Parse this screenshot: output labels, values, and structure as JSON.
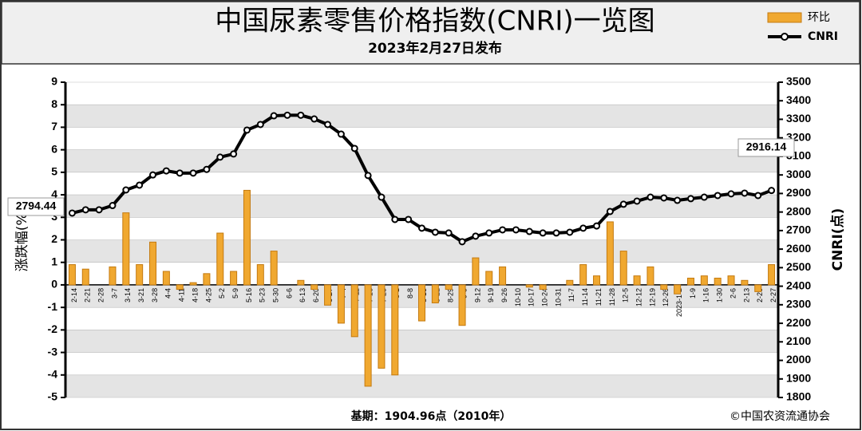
{
  "chart_data": {
    "type": "bar-line",
    "title": "中国尿素零售价格指数(CNRI)一览图",
    "subtitle": "2023年2月27日发布",
    "y_label": "涨跌幅(%)",
    "y2_label": "CNRI(点)",
    "footer_left": "基期：1904.96点（2010年）",
    "footer_right": "©中国农资流通协会",
    "categories": [
      "2-14",
      "2-21",
      "2-28",
      "3-7",
      "3-14",
      "3-21",
      "3-28",
      "4-4",
      "4-11",
      "4-18",
      "4-25",
      "5-2",
      "5-9",
      "5-16",
      "5-23",
      "5-30",
      "6-6",
      "6-13",
      "6-20",
      "6-27",
      "7-4",
      "7-11",
      "7-18",
      "7-25",
      "8-1",
      "8-8",
      "8-15",
      "8-22",
      "8-29",
      "9-5",
      "9-12",
      "9-19",
      "9-26",
      "10-10",
      "10-17",
      "10-24",
      "10-31",
      "11-7",
      "11-14",
      "11-21",
      "11-28",
      "12-5",
      "12-12",
      "12-19",
      "12-26",
      "2023-1-2",
      "1-9",
      "1-16",
      "1-30",
      "2-6",
      "2-13",
      "2-20",
      "2-27"
    ],
    "series": [
      {
        "name": "环比",
        "type": "bar",
        "color": "#f0a830",
        "values": [
          0.9,
          0.7,
          0,
          0.8,
          3.2,
          0.9,
          1.9,
          0.6,
          -0.2,
          0.1,
          0.5,
          2.3,
          0.6,
          4.2,
          0.9,
          1.5,
          0,
          0.2,
          -0.2,
          -0.9,
          -1.7,
          -2.3,
          -4.5,
          -3.7,
          -4.0,
          0,
          -1.6,
          -0.8,
          -0.2,
          -1.8,
          1.2,
          0.6,
          0.8,
          0,
          -0.1,
          -0.2,
          0,
          0.2,
          0.9,
          0.4,
          2.8,
          1.5,
          0.4,
          0.8,
          -0.2,
          -0.4,
          0.3,
          0.4,
          0.3,
          0.4,
          0.2,
          -0.3,
          0.9
        ]
      },
      {
        "name": "CNRI",
        "type": "line",
        "axis": "y2",
        "color": "#000000",
        "values": [
          2794.44,
          2812,
          2812,
          2835,
          2919,
          2945,
          3000,
          3022,
          3010,
          3010,
          3030,
          3096,
          3113,
          3242,
          3272,
          3319,
          3322,
          3322,
          3302,
          3272,
          3220,
          3143,
          2997,
          2880,
          2760,
          2760,
          2713,
          2691,
          2687,
          2640,
          2670,
          2687,
          2704,
          2704,
          2695,
          2687,
          2687,
          2691,
          2713,
          2725,
          2803,
          2842,
          2859,
          2880,
          2876,
          2863,
          2872,
          2880,
          2889,
          2898,
          2902,
          2889,
          2916.14
        ]
      }
    ],
    "ylim": [
      -5,
      9
    ],
    "yticks": [
      -5,
      -4,
      -3,
      -2,
      -1,
      0,
      1,
      2,
      3,
      4,
      5,
      6,
      7,
      8,
      9
    ],
    "y2lim": [
      1800,
      3500
    ],
    "y2ticks": [
      1800,
      1900,
      2000,
      2100,
      2200,
      2300,
      2400,
      2500,
      2600,
      2700,
      2800,
      2900,
      3000,
      3100,
      3200,
      3300,
      3400,
      3500
    ],
    "grid": true
  }
}
